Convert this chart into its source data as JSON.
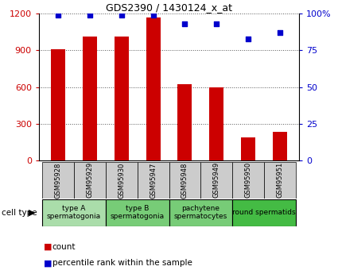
{
  "title": "GDS2390 / 1430124_x_at",
  "samples": [
    "GSM95928",
    "GSM95929",
    "GSM95930",
    "GSM95947",
    "GSM95948",
    "GSM95949",
    "GSM95950",
    "GSM95951"
  ],
  "counts": [
    910,
    1010,
    1010,
    1170,
    620,
    600,
    185,
    230
  ],
  "percentiles": [
    99,
    99,
    99,
    99,
    93,
    93,
    83,
    87
  ],
  "cell_types": [
    {
      "label": "type A\nspermatogonia",
      "span": [
        0,
        2
      ],
      "color": "#aaddaa"
    },
    {
      "label": "type B\nspermatogonia",
      "span": [
        2,
        4
      ],
      "color": "#77cc77"
    },
    {
      "label": "pachytene\nspermatocytes",
      "span": [
        4,
        6
      ],
      "color": "#77cc77"
    },
    {
      "label": "round spermatids",
      "span": [
        6,
        8
      ],
      "color": "#44bb44"
    }
  ],
  "ylim_left": [
    0,
    1200
  ],
  "ylim_right": [
    0,
    100
  ],
  "yticks_left": [
    0,
    300,
    600,
    900,
    1200
  ],
  "ytick_labels_right": [
    "0",
    "25",
    "50",
    "75",
    "100%"
  ],
  "yticks_right": [
    0,
    25,
    50,
    75,
    100
  ],
  "bar_color": "#cc0000",
  "dot_color": "#0000cc",
  "bar_width": 0.45,
  "background_color": "#ffffff",
  "cell_type_label": "cell type",
  "legend_count_label": "count",
  "legend_pct_label": "percentile rank within the sample",
  "tick_box_color": "#cccccc",
  "grid_color": "#555555",
  "title_fontsize": 9,
  "axis_fontsize": 8,
  "tick_label_fontsize": 6,
  "cell_type_fontsize": 6.5,
  "legend_fontsize": 7.5
}
